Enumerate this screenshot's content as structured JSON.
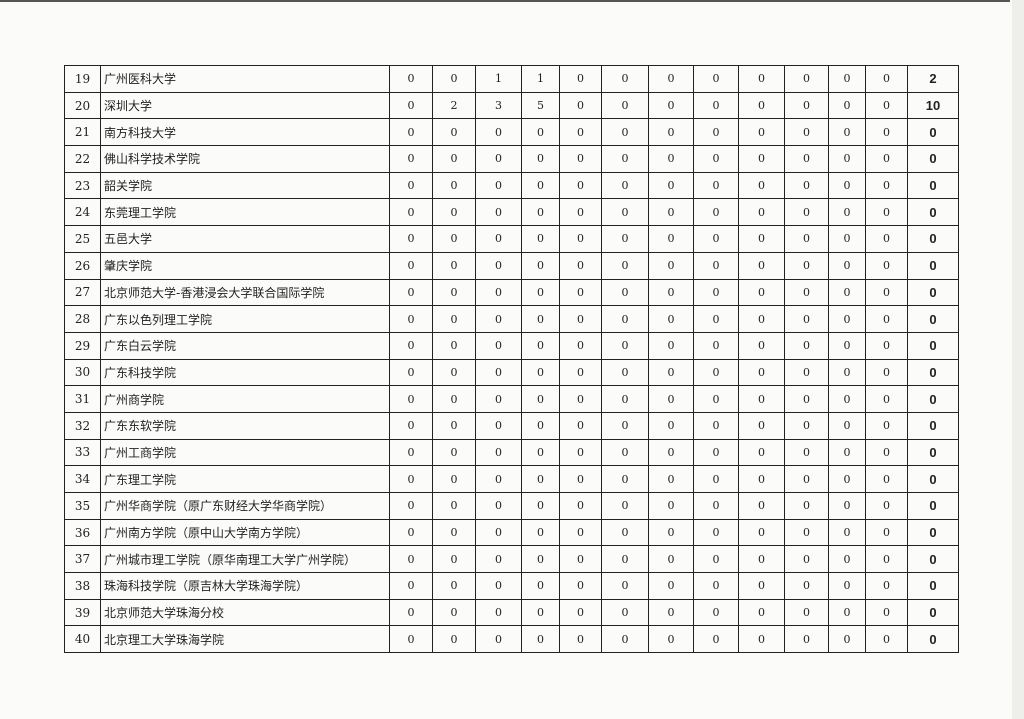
{
  "rows": [
    {
      "no": "19",
      "name": "广州医科大学",
      "values": [
        "0",
        "0",
        "1",
        "1",
        "0",
        "0",
        "0",
        "0",
        "0",
        "0",
        "0",
        "0"
      ],
      "total": "2"
    },
    {
      "no": "20",
      "name": "深圳大学",
      "values": [
        "0",
        "2",
        "3",
        "5",
        "0",
        "0",
        "0",
        "0",
        "0",
        "0",
        "0",
        "0"
      ],
      "total": "10"
    },
    {
      "no": "21",
      "name": "南方科技大学",
      "values": [
        "0",
        "0",
        "0",
        "0",
        "0",
        "0",
        "0",
        "0",
        "0",
        "0",
        "0",
        "0"
      ],
      "total": "0"
    },
    {
      "no": "22",
      "name": "佛山科学技术学院",
      "values": [
        "0",
        "0",
        "0",
        "0",
        "0",
        "0",
        "0",
        "0",
        "0",
        "0",
        "0",
        "0"
      ],
      "total": "0"
    },
    {
      "no": "23",
      "name": "韶关学院",
      "values": [
        "0",
        "0",
        "0",
        "0",
        "0",
        "0",
        "0",
        "0",
        "0",
        "0",
        "0",
        "0"
      ],
      "total": "0"
    },
    {
      "no": "24",
      "name": "东莞理工学院",
      "values": [
        "0",
        "0",
        "0",
        "0",
        "0",
        "0",
        "0",
        "0",
        "0",
        "0",
        "0",
        "0"
      ],
      "total": "0"
    },
    {
      "no": "25",
      "name": "五邑大学",
      "values": [
        "0",
        "0",
        "0",
        "0",
        "0",
        "0",
        "0",
        "0",
        "0",
        "0",
        "0",
        "0"
      ],
      "total": "0"
    },
    {
      "no": "26",
      "name": "肇庆学院",
      "values": [
        "0",
        "0",
        "0",
        "0",
        "0",
        "0",
        "0",
        "0",
        "0",
        "0",
        "0",
        "0"
      ],
      "total": "0"
    },
    {
      "no": "27",
      "name": "北京师范大学-香港浸会大学联合国际学院",
      "values": [
        "0",
        "0",
        "0",
        "0",
        "0",
        "0",
        "0",
        "0",
        "0",
        "0",
        "0",
        "0"
      ],
      "total": "0"
    },
    {
      "no": "28",
      "name": "广东以色列理工学院",
      "values": [
        "0",
        "0",
        "0",
        "0",
        "0",
        "0",
        "0",
        "0",
        "0",
        "0",
        "0",
        "0"
      ],
      "total": "0"
    },
    {
      "no": "29",
      "name": "广东白云学院",
      "values": [
        "0",
        "0",
        "0",
        "0",
        "0",
        "0",
        "0",
        "0",
        "0",
        "0",
        "0",
        "0"
      ],
      "total": "0"
    },
    {
      "no": "30",
      "name": "广东科技学院",
      "values": [
        "0",
        "0",
        "0",
        "0",
        "0",
        "0",
        "0",
        "0",
        "0",
        "0",
        "0",
        "0"
      ],
      "total": "0"
    },
    {
      "no": "31",
      "name": "广州商学院",
      "values": [
        "0",
        "0",
        "0",
        "0",
        "0",
        "0",
        "0",
        "0",
        "0",
        "0",
        "0",
        "0"
      ],
      "total": "0"
    },
    {
      "no": "32",
      "name": "广东东软学院",
      "values": [
        "0",
        "0",
        "0",
        "0",
        "0",
        "0",
        "0",
        "0",
        "0",
        "0",
        "0",
        "0"
      ],
      "total": "0"
    },
    {
      "no": "33",
      "name": "广州工商学院",
      "values": [
        "0",
        "0",
        "0",
        "0",
        "0",
        "0",
        "0",
        "0",
        "0",
        "0",
        "0",
        "0"
      ],
      "total": "0"
    },
    {
      "no": "34",
      "name": "广东理工学院",
      "values": [
        "0",
        "0",
        "0",
        "0",
        "0",
        "0",
        "0",
        "0",
        "0",
        "0",
        "0",
        "0"
      ],
      "total": "0"
    },
    {
      "no": "35",
      "name": "广州华商学院（原广东财经大学华商学院）",
      "values": [
        "0",
        "0",
        "0",
        "0",
        "0",
        "0",
        "0",
        "0",
        "0",
        "0",
        "0",
        "0"
      ],
      "total": "0"
    },
    {
      "no": "36",
      "name": "广州南方学院（原中山大学南方学院）",
      "values": [
        "0",
        "0",
        "0",
        "0",
        "0",
        "0",
        "0",
        "0",
        "0",
        "0",
        "0",
        "0"
      ],
      "total": "0"
    },
    {
      "no": "37",
      "name": "广州城市理工学院（原华南理工大学广州学院）",
      "values": [
        "0",
        "0",
        "0",
        "0",
        "0",
        "0",
        "0",
        "0",
        "0",
        "0",
        "0",
        "0"
      ],
      "total": "0"
    },
    {
      "no": "38",
      "name": "珠海科技学院（原吉林大学珠海学院）",
      "values": [
        "0",
        "0",
        "0",
        "0",
        "0",
        "0",
        "0",
        "0",
        "0",
        "0",
        "0",
        "0"
      ],
      "total": "0"
    },
    {
      "no": "39",
      "name": "北京师范大学珠海分校",
      "values": [
        "0",
        "0",
        "0",
        "0",
        "0",
        "0",
        "0",
        "0",
        "0",
        "0",
        "0",
        "0"
      ],
      "total": "0"
    },
    {
      "no": "40",
      "name": "北京理工大学珠海学院",
      "values": [
        "0",
        "0",
        "0",
        "0",
        "0",
        "0",
        "0",
        "0",
        "0",
        "0",
        "0",
        "0"
      ],
      "total": "0"
    }
  ]
}
